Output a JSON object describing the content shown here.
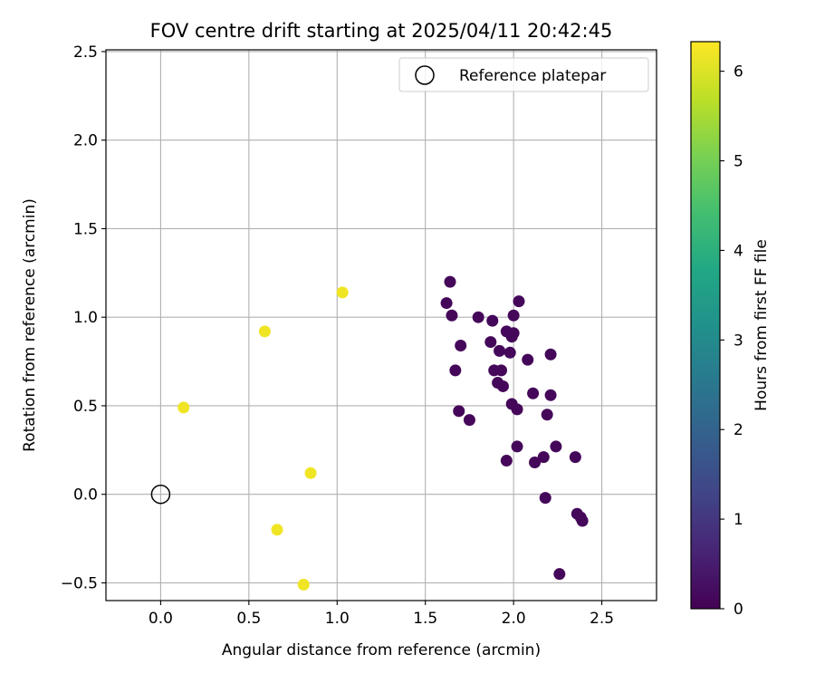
{
  "chart_data": {
    "type": "scatter",
    "title": "FOV centre drift starting at 2025/04/11 20:42:45",
    "xlabel": "Angular distance from reference (arcmin)",
    "ylabel": "Rotation from reference (arcmin)",
    "xlim": [
      -0.31,
      2.81
    ],
    "ylim": [
      -0.6,
      2.51
    ],
    "x_ticks": [
      0.0,
      0.5,
      1.0,
      1.5,
      2.0,
      2.5
    ],
    "x_tick_labels": [
      "0.0",
      "0.5",
      "1.0",
      "1.5",
      "2.0",
      "2.5"
    ],
    "y_ticks": [
      -0.5,
      0.0,
      0.5,
      1.0,
      1.5,
      2.0,
      2.5
    ],
    "y_tick_labels": [
      "−0.5",
      "0.0",
      "0.5",
      "1.0",
      "1.5",
      "2.0",
      "2.5"
    ],
    "grid": true,
    "legend": {
      "placement": "top-right",
      "entries": [
        {
          "label": "Reference platepar",
          "marker": "open-circle"
        }
      ]
    },
    "reference_point": {
      "x": 0.0,
      "y": 0.0
    },
    "colorbar": {
      "label": "Hours from first FF file",
      "colormap": "viridis",
      "range": [
        0,
        6.33
      ],
      "ticks": [
        0,
        1,
        2,
        3,
        4,
        5,
        6
      ],
      "tick_labels": [
        "0",
        "1",
        "2",
        "3",
        "4",
        "5",
        "6"
      ]
    },
    "points": [
      {
        "x": 0.13,
        "y": 0.49,
        "c": 6.2
      },
      {
        "x": 0.59,
        "y": 0.92,
        "c": 6.2
      },
      {
        "x": 1.03,
        "y": 1.14,
        "c": 6.2
      },
      {
        "x": 0.85,
        "y": 0.12,
        "c": 6.2
      },
      {
        "x": 0.66,
        "y": -0.2,
        "c": 6.2
      },
      {
        "x": 0.81,
        "y": -0.51,
        "c": 6.2
      },
      {
        "x": 1.64,
        "y": 1.2,
        "c": 0.1
      },
      {
        "x": 1.62,
        "y": 1.08,
        "c": 0.1
      },
      {
        "x": 1.65,
        "y": 1.01,
        "c": 0.1
      },
      {
        "x": 1.8,
        "y": 1.0,
        "c": 0.1
      },
      {
        "x": 1.88,
        "y": 0.98,
        "c": 0.1
      },
      {
        "x": 2.03,
        "y": 1.09,
        "c": 0.1
      },
      {
        "x": 2.0,
        "y": 1.01,
        "c": 0.1
      },
      {
        "x": 1.96,
        "y": 0.92,
        "c": 0.1
      },
      {
        "x": 1.99,
        "y": 0.89,
        "c": 0.1
      },
      {
        "x": 2.0,
        "y": 0.91,
        "c": 0.1
      },
      {
        "x": 1.87,
        "y": 0.86,
        "c": 0.1
      },
      {
        "x": 1.7,
        "y": 0.84,
        "c": 0.1
      },
      {
        "x": 1.92,
        "y": 0.81,
        "c": 0.1
      },
      {
        "x": 1.98,
        "y": 0.8,
        "c": 0.1
      },
      {
        "x": 2.21,
        "y": 0.79,
        "c": 0.1
      },
      {
        "x": 2.08,
        "y": 0.76,
        "c": 0.1
      },
      {
        "x": 1.67,
        "y": 0.7,
        "c": 0.1
      },
      {
        "x": 1.89,
        "y": 0.7,
        "c": 0.1
      },
      {
        "x": 1.93,
        "y": 0.7,
        "c": 0.1
      },
      {
        "x": 1.91,
        "y": 0.63,
        "c": 0.1
      },
      {
        "x": 1.94,
        "y": 0.61,
        "c": 0.1
      },
      {
        "x": 2.11,
        "y": 0.57,
        "c": 0.1
      },
      {
        "x": 2.21,
        "y": 0.56,
        "c": 0.1
      },
      {
        "x": 1.99,
        "y": 0.51,
        "c": 0.1
      },
      {
        "x": 2.02,
        "y": 0.48,
        "c": 0.1
      },
      {
        "x": 1.69,
        "y": 0.47,
        "c": 0.1
      },
      {
        "x": 2.19,
        "y": 0.45,
        "c": 0.1
      },
      {
        "x": 1.75,
        "y": 0.42,
        "c": 0.1
      },
      {
        "x": 2.02,
        "y": 0.27,
        "c": 0.1
      },
      {
        "x": 2.24,
        "y": 0.27,
        "c": 0.1
      },
      {
        "x": 2.17,
        "y": 0.21,
        "c": 0.1
      },
      {
        "x": 2.35,
        "y": 0.21,
        "c": 0.1
      },
      {
        "x": 1.96,
        "y": 0.19,
        "c": 0.1
      },
      {
        "x": 2.12,
        "y": 0.18,
        "c": 0.1
      },
      {
        "x": 2.18,
        "y": -0.02,
        "c": 0.1
      },
      {
        "x": 2.36,
        "y": -0.11,
        "c": 0.1
      },
      {
        "x": 2.38,
        "y": -0.13,
        "c": 0.1
      },
      {
        "x": 2.39,
        "y": -0.15,
        "c": 0.1
      },
      {
        "x": 2.26,
        "y": -0.45,
        "c": 0.1
      }
    ]
  }
}
